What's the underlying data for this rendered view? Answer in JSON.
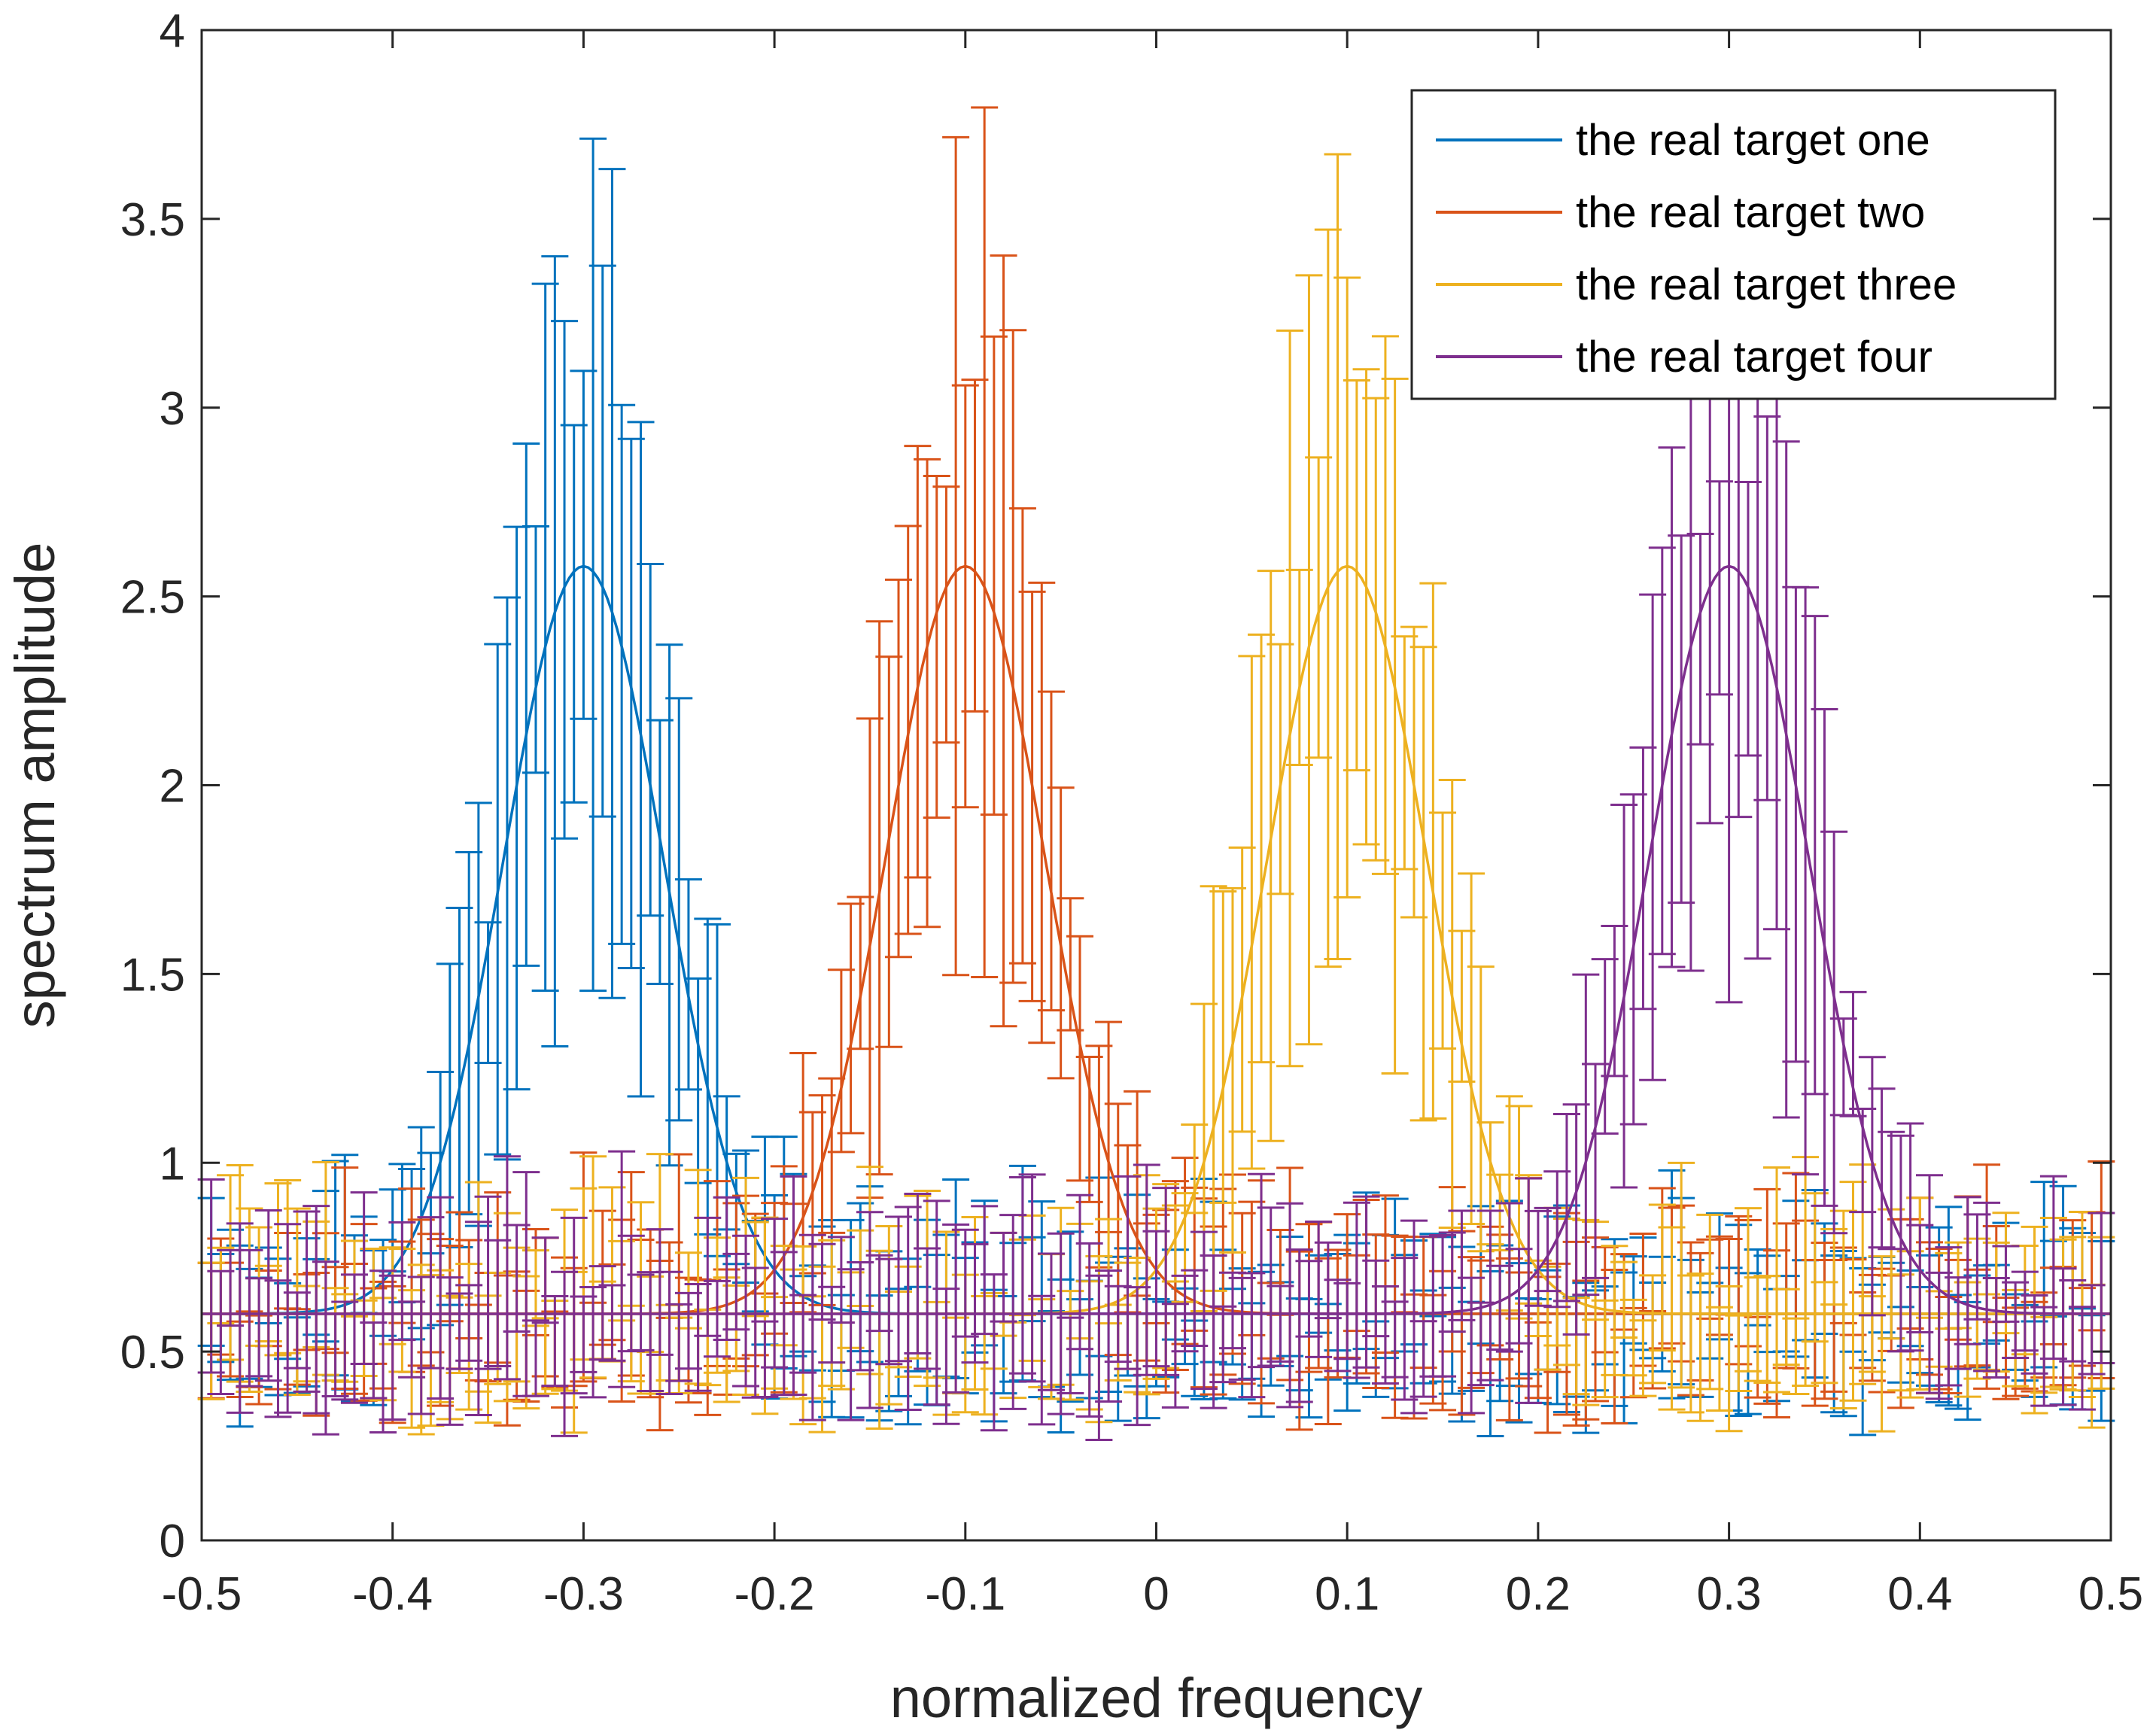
{
  "chart_data": {
    "type": "line",
    "title": "",
    "xlabel": "normalized frequency",
    "ylabel": "spectrum amplitude",
    "xlim": [
      -0.5,
      0.5
    ],
    "ylim": [
      0,
      4
    ],
    "grid": false,
    "legend_position": "top-right",
    "x_ticks": [
      "-0.5",
      "-0.4",
      "-0.3",
      "-0.2",
      "-0.1",
      "0",
      "0.1",
      "0.2",
      "0.3",
      "0.4",
      "0.5"
    ],
    "y_ticks": [
      "0",
      "0.5",
      "1",
      "1.5",
      "2",
      "2.5",
      "3",
      "3.5",
      "4"
    ],
    "x_step": 0.005,
    "error_bar_x_start": -0.495,
    "error_bar_half_range": [
      0.1,
      0.45
    ],
    "series": [
      {
        "name": "the real target one",
        "color": "#0072BD",
        "center": -0.3,
        "peak": 2.58,
        "baseline": 0.6,
        "width": 0.042
      },
      {
        "name": "the real target two",
        "color": "#D95319",
        "center": -0.1,
        "peak": 2.58,
        "baseline": 0.6,
        "width": 0.042
      },
      {
        "name": "the real target three",
        "color": "#EDB120",
        "center": 0.1,
        "peak": 2.58,
        "baseline": 0.6,
        "width": 0.042
      },
      {
        "name": "the real target four",
        "color": "#7E2F8E",
        "center": 0.3,
        "peak": 2.58,
        "baseline": 0.6,
        "width": 0.042
      }
    ]
  }
}
